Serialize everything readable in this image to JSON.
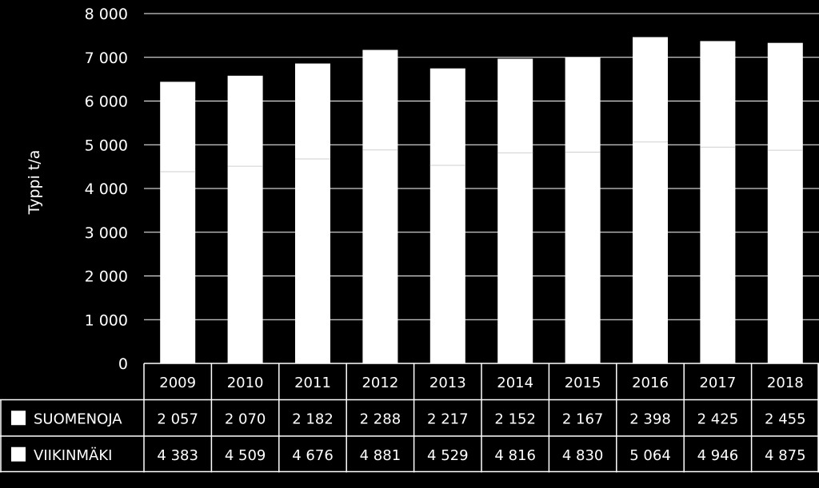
{
  "colors": {
    "background": "#000000",
    "bar_fill": "#ffffff",
    "bar_separator": "#cfcfcf",
    "grid": "#ffffff",
    "text": "#ffffff"
  },
  "chart_data": {
    "type": "bar",
    "stacked": true,
    "categories": [
      "2009",
      "2010",
      "2011",
      "2012",
      "2013",
      "2014",
      "2015",
      "2016",
      "2017",
      "2018"
    ],
    "series": [
      {
        "name": "VIIKINMÄKI",
        "values": [
          4383,
          4509,
          4676,
          4881,
          4529,
          4816,
          4830,
          5064,
          4946,
          4875
        ],
        "labels": [
          "4 383",
          "4 509",
          "4 676",
          "4 881",
          "4 529",
          "4 816",
          "4 830",
          "5 064",
          "4 946",
          "4 875"
        ]
      },
      {
        "name": "SUOMENOJA",
        "values": [
          2057,
          2070,
          2182,
          2288,
          2217,
          2152,
          2167,
          2398,
          2425,
          2455
        ],
        "labels": [
          "2 057",
          "2 070",
          "2 182",
          "2 288",
          "2 217",
          "2 152",
          "2 167",
          "2 398",
          "2 425",
          "2 455"
        ]
      }
    ],
    "ylabel": "Typpi t/a",
    "xlabel": "",
    "ylim": [
      0,
      8000
    ],
    "yticks": [
      0,
      1000,
      2000,
      3000,
      4000,
      5000,
      6000,
      7000,
      8000
    ],
    "ytick_labels": [
      "0",
      "1 000",
      "2 000",
      "3 000",
      "4 000",
      "5 000",
      "6 000",
      "7 000",
      "8 000"
    ],
    "grid": true,
    "data_table": true,
    "table_rows": [
      "SUOMENOJA",
      "VIIKINMÄKI"
    ]
  }
}
